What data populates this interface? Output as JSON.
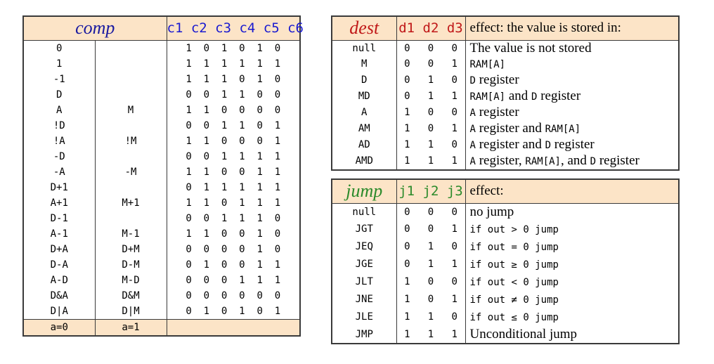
{
  "colors": {
    "header_bg": "#fce4c7",
    "comp_title": "#1a1aa0",
    "c_bits": "#1a1ad0",
    "dest_title": "#c01818",
    "d_bits": "#c01818",
    "jump_title": "#2a8a2a",
    "j_bits": "#2a8a2a"
  },
  "comp": {
    "title": "comp",
    "bits_header": "c1 c2 c3 c4 c5 c6",
    "rows": [
      {
        "a0": "0",
        "a1": "",
        "bits": "1  0  1  0  1  0"
      },
      {
        "a0": "1",
        "a1": "",
        "bits": "1  1  1  1  1  1"
      },
      {
        "a0": "-1",
        "a1": "",
        "bits": "1  1  1  0  1  0"
      },
      {
        "a0": "D",
        "a1": "",
        "bits": "0  0  1  1  0  0"
      },
      {
        "a0": "A",
        "a1": "M",
        "bits": "1  1  0  0  0  0"
      },
      {
        "a0": "!D",
        "a1": "",
        "bits": "0  0  1  1  0  1"
      },
      {
        "a0": "!A",
        "a1": "!M",
        "bits": "1  1  0  0  0  1"
      },
      {
        "a0": "-D",
        "a1": "",
        "bits": "0  0  1  1  1  1"
      },
      {
        "a0": "-A",
        "a1": "-M",
        "bits": "1  1  0  0  1  1"
      },
      {
        "a0": "D+1",
        "a1": "",
        "bits": "0  1  1  1  1  1"
      },
      {
        "a0": "A+1",
        "a1": "M+1",
        "bits": "1  1  0  1  1  1"
      },
      {
        "a0": "D-1",
        "a1": "",
        "bits": "0  0  1  1  1  0"
      },
      {
        "a0": "A-1",
        "a1": "M-1",
        "bits": "1  1  0  0  1  0"
      },
      {
        "a0": "D+A",
        "a1": "D+M",
        "bits": "0  0  0  0  1  0"
      },
      {
        "a0": "D-A",
        "a1": "D-M",
        "bits": "0  1  0  0  1  1"
      },
      {
        "a0": "A-D",
        "a1": "M-D",
        "bits": "0  0  0  1  1  1"
      },
      {
        "a0": "D&A",
        "a1": "D&M",
        "bits": "0  0  0  0  0  0"
      },
      {
        "a0": "D|A",
        "a1": "D|M",
        "bits": "0  1  0  1  0  1"
      }
    ],
    "footer": {
      "a0": "a=0",
      "a1": "a=1"
    }
  },
  "dest": {
    "title": "dest",
    "bits_header": "d1 d2 d3",
    "effect_header": "effect: the value is stored in:",
    "rows": [
      {
        "name": "null",
        "bits": "0   0   0",
        "effect": [
          {
            "t": "The value is not stored",
            "m": false
          }
        ]
      },
      {
        "name": "M",
        "bits": "0   0   1",
        "effect": [
          {
            "t": "RAM[A]",
            "m": true
          }
        ]
      },
      {
        "name": "D",
        "bits": "0   1   0",
        "effect": [
          {
            "t": "D",
            "m": true
          },
          {
            "t": " register",
            "m": false
          }
        ]
      },
      {
        "name": "MD",
        "bits": "0   1   1",
        "effect": [
          {
            "t": "RAM[A]",
            "m": true
          },
          {
            "t": " and ",
            "m": false
          },
          {
            "t": "D",
            "m": true
          },
          {
            "t": " register",
            "m": false
          }
        ]
      },
      {
        "name": "A",
        "bits": "1   0   0",
        "effect": [
          {
            "t": "A",
            "m": true
          },
          {
            "t": " register",
            "m": false
          }
        ]
      },
      {
        "name": "AM",
        "bits": "1   0   1",
        "effect": [
          {
            "t": "A",
            "m": true
          },
          {
            "t": " register and ",
            "m": false
          },
          {
            "t": "RAM[A]",
            "m": true
          }
        ]
      },
      {
        "name": "AD",
        "bits": "1   1   0",
        "effect": [
          {
            "t": "A",
            "m": true
          },
          {
            "t": " register and ",
            "m": false
          },
          {
            "t": "D",
            "m": true
          },
          {
            "t": " register",
            "m": false
          }
        ]
      },
      {
        "name": "AMD",
        "bits": "1   1   1",
        "effect": [
          {
            "t": "A",
            "m": true
          },
          {
            "t": " register, ",
            "m": false
          },
          {
            "t": "RAM[A]",
            "m": true
          },
          {
            "t": ", and ",
            "m": false
          },
          {
            "t": "D",
            "m": true
          },
          {
            "t": " register",
            "m": false
          }
        ]
      }
    ]
  },
  "jump": {
    "title": "jump",
    "bits_header": "j1 j2 j3",
    "effect_header": "effect:",
    "rows": [
      {
        "name": "null",
        "bits": "0   0   0",
        "effect": [
          {
            "t": "no jump",
            "m": false
          }
        ]
      },
      {
        "name": "JGT",
        "bits": "0   0   1",
        "effect": [
          {
            "t": "if out > 0 jump",
            "m": true
          }
        ]
      },
      {
        "name": "JEQ",
        "bits": "0   1   0",
        "effect": [
          {
            "t": "if out = 0 jump",
            "m": true
          }
        ]
      },
      {
        "name": "JGE",
        "bits": "0   1   1",
        "effect": [
          {
            "t": "if out ≥ 0 jump",
            "m": true
          }
        ]
      },
      {
        "name": "JLT",
        "bits": "1   0   0",
        "effect": [
          {
            "t": "if out < 0 jump",
            "m": true
          }
        ]
      },
      {
        "name": "JNE",
        "bits": "1   0   1",
        "effect": [
          {
            "t": "if out ≠ 0 jump",
            "m": true
          }
        ]
      },
      {
        "name": "JLE",
        "bits": "1   1   0",
        "effect": [
          {
            "t": "if out ≤ 0 jump",
            "m": true
          }
        ]
      },
      {
        "name": "JMP",
        "bits": "1   1   1",
        "effect": [
          {
            "t": "Unconditional jump",
            "m": false
          }
        ]
      }
    ]
  }
}
